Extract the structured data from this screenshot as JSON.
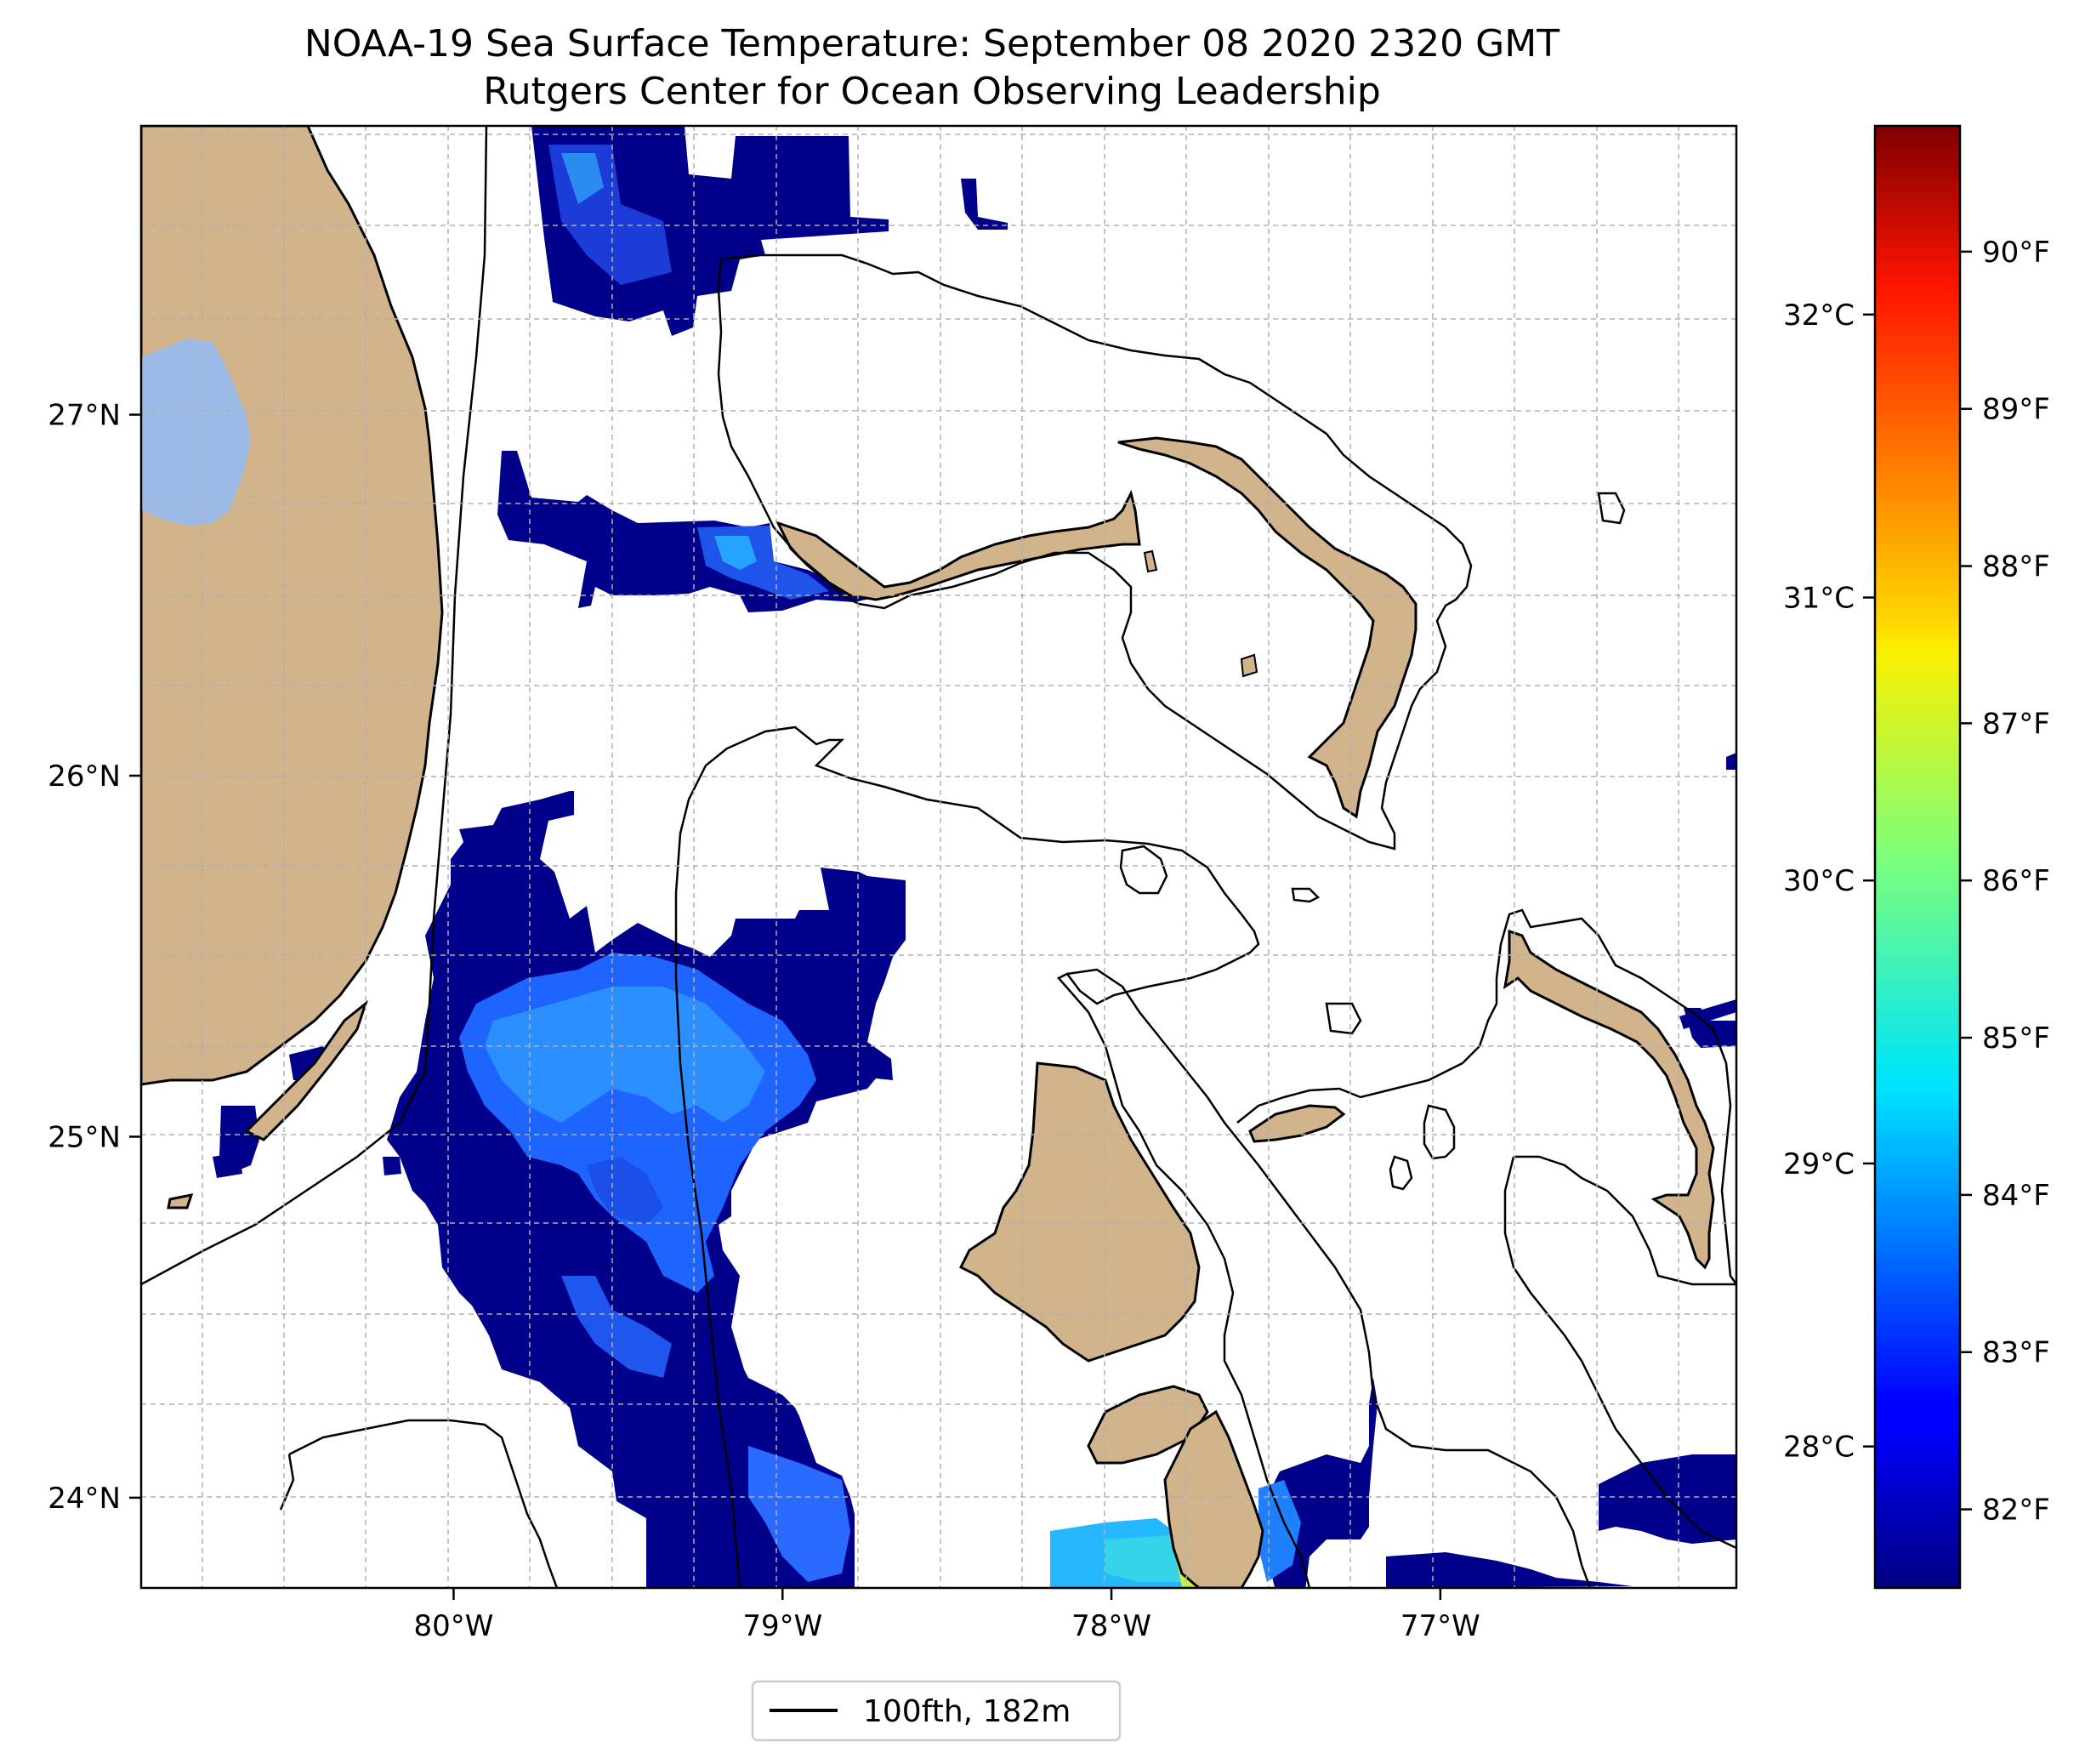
{
  "title": {
    "line1": "NOAA-19 Sea Surface Temperature: September 08 2020 2320 GMT",
    "line2": "Rutgers Center for Ocean Observing Leadership"
  },
  "map": {
    "lon_range": [
      -80.95,
      -76.1
    ],
    "lat_range": [
      23.75,
      27.8
    ],
    "lon_ticks": [
      {
        "value": -80,
        "label": "80°W"
      },
      {
        "value": -79,
        "label": "79°W"
      },
      {
        "value": -78,
        "label": "78°W"
      },
      {
        "value": -77,
        "label": "77°W"
      }
    ],
    "lat_ticks": [
      {
        "value": 24,
        "label": "24°N"
      },
      {
        "value": 25,
        "label": "25°N"
      },
      {
        "value": 26,
        "label": "26°N"
      },
      {
        "value": 27,
        "label": "27°N"
      }
    ],
    "grid": true,
    "colors": {
      "land": "#d2b48c",
      "lake": "#9bbbe6",
      "ocean": "#ffffff",
      "contour": "#000000",
      "sst_low": "#00008b",
      "sst_mid": "#1e64ff",
      "sst_high": "#25c4ff"
    }
  },
  "colorbar": {
    "celsius_ticks": [
      {
        "value": 28,
        "label": "28°C"
      },
      {
        "value": 29,
        "label": "29°C"
      },
      {
        "value": 30,
        "label": "30°C"
      },
      {
        "value": 31,
        "label": "31°C"
      },
      {
        "value": 32,
        "label": "32°C"
      }
    ],
    "fahrenheit_ticks": [
      {
        "value": 82,
        "label": "82°F"
      },
      {
        "value": 83,
        "label": "83°F"
      },
      {
        "value": 84,
        "label": "84°F"
      },
      {
        "value": 85,
        "label": "85°F"
      },
      {
        "value": 86,
        "label": "86°F"
      },
      {
        "value": 87,
        "label": "87°F"
      },
      {
        "value": 88,
        "label": "88°F"
      },
      {
        "value": 89,
        "label": "89°F"
      },
      {
        "value": 90,
        "label": "90°F"
      }
    ],
    "range_f": [
      81.5,
      90.8
    ],
    "colormap": "jet"
  },
  "legend": {
    "label": "100fth, 182m",
    "placement": "bottom-center"
  }
}
